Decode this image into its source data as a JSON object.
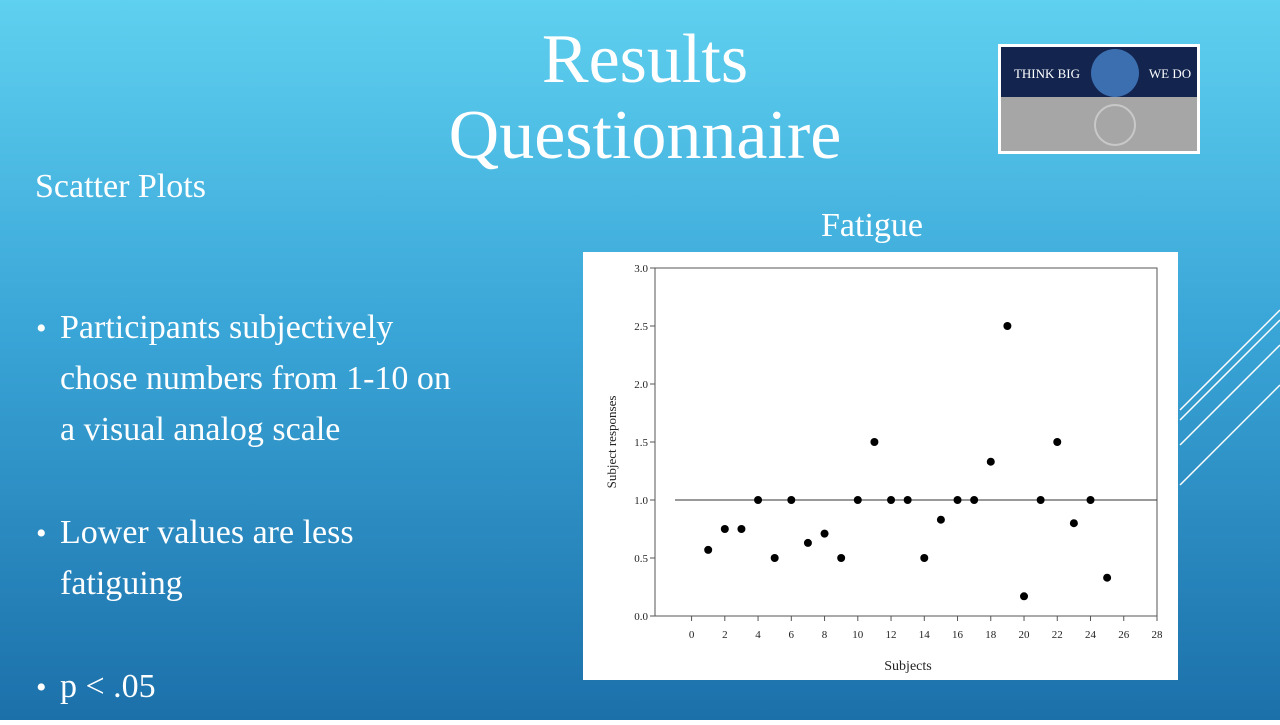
{
  "slide": {
    "title_lines": [
      "Results",
      "Questionnaire"
    ],
    "subtitle": "Scatter Plots",
    "bullets": [
      [
        "Participants subjectively",
        "chose numbers from 1-10 on",
        "a visual analog scale"
      ],
      [
        "Lower values are less",
        "fatiguing"
      ],
      [
        "p < .05"
      ]
    ],
    "logo": {
      "left": "THINK BIG",
      "right": "WE DO"
    }
  },
  "chart_data": {
    "type": "scatter",
    "title": "Fatigue",
    "x_label": "Subjects",
    "y_label": "Subject responses",
    "x": [
      1,
      2,
      3,
      4,
      5,
      6,
      7,
      8,
      9,
      10,
      11,
      12,
      13,
      14,
      15,
      16,
      17,
      18,
      19,
      20,
      21,
      22,
      23,
      24,
      25
    ],
    "values": [
      0.57,
      0.75,
      0.75,
      1.0,
      0.5,
      1.0,
      0.63,
      0.71,
      0.5,
      1.0,
      1.5,
      1.0,
      1.0,
      0.5,
      0.83,
      1.0,
      1.0,
      1.33,
      2.5,
      0.17,
      1.0,
      1.5,
      0.8,
      1.0,
      0.33
    ],
    "color": "#000000",
    "xlim": [
      -2.2,
      28
    ],
    "ylim": [
      0,
      3
    ],
    "xticks": [
      0,
      2,
      4,
      6,
      8,
      10,
      12,
      14,
      16,
      18,
      20,
      22,
      24,
      26,
      28
    ],
    "yticks": [
      {
        "value": 0,
        "label": "0.0"
      },
      0.5,
      {
        "value": 1,
        "label": "1.0"
      },
      1.5,
      {
        "value": 2,
        "label": "2.0"
      },
      2.5,
      {
        "value": 3,
        "label": "3.0"
      }
    ],
    "reference_line": 1
  }
}
